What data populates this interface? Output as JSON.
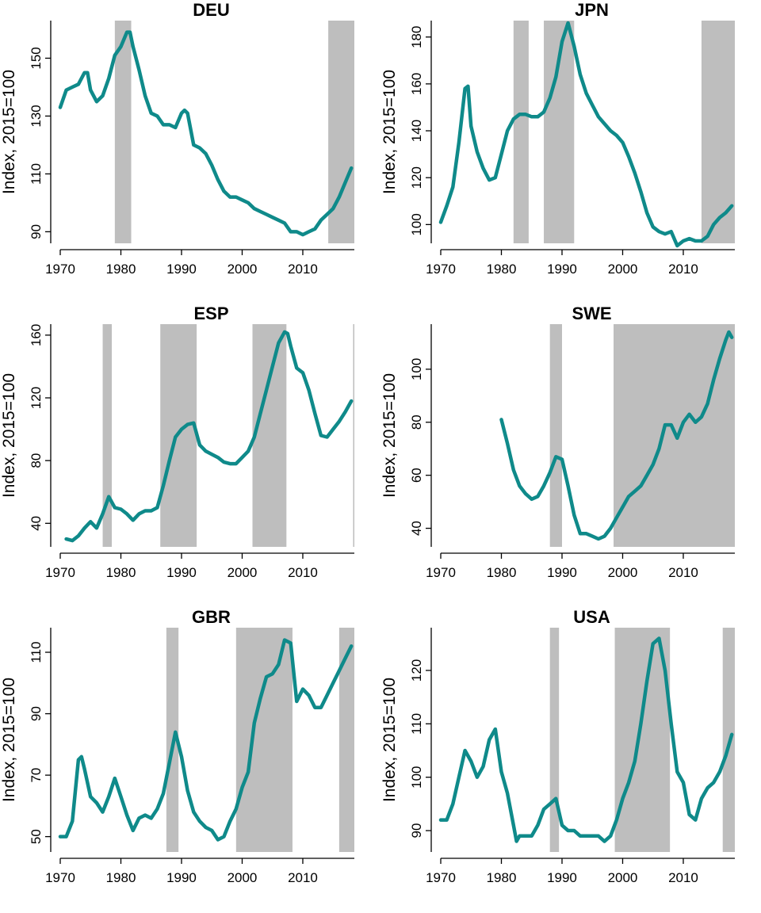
{
  "chart_data": [
    {
      "type": "line",
      "title": "DEU",
      "ylabel": "Index, 2015=100",
      "xlim": [
        1970,
        2018.5
      ],
      "ylim": [
        86,
        163
      ],
      "x_ticks": [
        1970,
        1980,
        1990,
        2000,
        2010
      ],
      "y_ticks": [
        90,
        110,
        130,
        150
      ],
      "shaded_periods": [
        [
          1979.0,
          1981.7
        ],
        [
          2014.2,
          2018.5
        ]
      ],
      "series": [
        {
          "color": "#0f8a8a",
          "x": [
            1970,
            1971,
            1972,
            1973,
            1974,
            1974.5,
            1975,
            1976,
            1977,
            1978,
            1979,
            1980,
            1981,
            1981.5,
            1982,
            1983,
            1984,
            1985,
            1986,
            1987,
            1988,
            1989,
            1990,
            1990.5,
            1991,
            1992,
            1993,
            1994,
            1995,
            1996,
            1997,
            1998,
            1999,
            2000,
            2001,
            2002,
            2003,
            2004,
            2005,
            2006,
            2007,
            2008,
            2009,
            2010,
            2011,
            2012,
            2013,
            2014,
            2015,
            2016,
            2017,
            2018
          ],
          "values": [
            133,
            139,
            140,
            141,
            145,
            145,
            139,
            135,
            137,
            143,
            151,
            154,
            159,
            159,
            154,
            146,
            137,
            131,
            130,
            127,
            127,
            126,
            131,
            132,
            131,
            120,
            119,
            117,
            113,
            108,
            104,
            102,
            102,
            101,
            100,
            98,
            97,
            96,
            95,
            94,
            93,
            90,
            90,
            89,
            90,
            91,
            94,
            96,
            98,
            102,
            107,
            112
          ]
        }
      ]
    },
    {
      "type": "line",
      "title": "JPN",
      "ylabel": "Index, 2015=100",
      "xlim": [
        1970,
        2018.5
      ],
      "ylim": [
        92,
        187
      ],
      "x_ticks": [
        1970,
        1980,
        1990,
        2000,
        2010
      ],
      "y_ticks": [
        100,
        120,
        140,
        160,
        180
      ],
      "shaded_periods": [
        [
          1982.0,
          1984.5
        ],
        [
          1987.0,
          1992.0
        ],
        [
          2013.0,
          2018.5
        ]
      ],
      "series": [
        {
          "color": "#0f8a8a",
          "x": [
            1970,
            1971,
            1972,
            1973,
            1974,
            1974.5,
            1975,
            1976,
            1977,
            1978,
            1979,
            1980,
            1981,
            1982,
            1983,
            1984,
            1985,
            1986,
            1987,
            1988,
            1989,
            1990,
            1991,
            1992,
            1993,
            1994,
            1995,
            1996,
            1997,
            1998,
            1999,
            2000,
            2001,
            2002,
            2003,
            2004,
            2005,
            2006,
            2007,
            2008,
            2009,
            2010,
            2011,
            2012,
            2013,
            2014,
            2015,
            2016,
            2017,
            2018
          ],
          "values": [
            101,
            108,
            116,
            135,
            158,
            159,
            142,
            131,
            124,
            119,
            120,
            130,
            140,
            145,
            147,
            147,
            146,
            146,
            148,
            154,
            163,
            178,
            186,
            176,
            164,
            156,
            151,
            146,
            143,
            140,
            138,
            135,
            129,
            122,
            114,
            105,
            99,
            97,
            96,
            97,
            91,
            93,
            94,
            93,
            93,
            95,
            100,
            103,
            105,
            108
          ]
        }
      ]
    },
    {
      "type": "line",
      "title": "ESP",
      "ylabel": "Index, 2015=100",
      "xlim": [
        1970,
        2018.5
      ],
      "ylim": [
        25,
        167
      ],
      "x_ticks": [
        1970,
        1980,
        1990,
        2000,
        2010
      ],
      "y_ticks": [
        40,
        80,
        120,
        160
      ],
      "shaded_periods": [
        [
          1977.0,
          1978.5
        ],
        [
          1986.5,
          1992.5
        ],
        [
          2001.7,
          2007.3
        ],
        [
          2018.3,
          2018.5
        ]
      ],
      "series": [
        {
          "color": "#0f8a8a",
          "x": [
            1971,
            1972,
            1973,
            1974,
            1975,
            1976,
            1977,
            1978,
            1979,
            1980,
            1981,
            1982,
            1983,
            1984,
            1985,
            1986,
            1987,
            1988,
            1989,
            1990,
            1991,
            1992,
            1993,
            1994,
            1995,
            1996,
            1997,
            1998,
            1999,
            2000,
            2001,
            2002,
            2003,
            2004,
            2005,
            2006,
            2007,
            2007.5,
            2008,
            2009,
            2010,
            2011,
            2012,
            2013,
            2014,
            2015,
            2016,
            2017,
            2018
          ],
          "values": [
            30,
            29,
            32,
            37,
            41,
            37,
            46,
            57,
            50,
            49,
            46,
            42,
            46,
            48,
            48,
            50,
            64,
            80,
            95,
            100,
            103,
            104,
            90,
            86,
            84,
            82,
            79,
            78,
            78,
            82,
            86,
            95,
            110,
            125,
            140,
            155,
            162,
            161,
            153,
            139,
            136,
            125,
            110,
            96,
            95,
            100,
            105,
            111,
            118
          ]
        }
      ]
    },
    {
      "type": "line",
      "title": "SWE",
      "ylabel": "Index, 2015=100",
      "xlim": [
        1970,
        2018.5
      ],
      "ylim": [
        33,
        117
      ],
      "x_ticks": [
        1970,
        1980,
        1990,
        2000,
        2010
      ],
      "y_ticks": [
        40,
        60,
        80,
        100
      ],
      "shaded_periods": [
        [
          1988.0,
          1990.0
        ],
        [
          1998.5,
          2018.5
        ]
      ],
      "series": [
        {
          "color": "#0f8a8a",
          "x": [
            1980,
            1981,
            1982,
            1983,
            1984,
            1985,
            1986,
            1987,
            1988,
            1989,
            1990,
            1991,
            1992,
            1993,
            1994,
            1995,
            1996,
            1997,
            1998,
            1999,
            2000,
            2001,
            2002,
            2003,
            2004,
            2005,
            2006,
            2007,
            2008,
            2009,
            2010,
            2011,
            2012,
            2013,
            2014,
            2015,
            2016,
            2017,
            2017.5,
            2018
          ],
          "values": [
            81,
            72,
            62,
            56,
            53,
            51,
            52,
            56,
            61,
            67,
            66,
            56,
            45,
            38,
            38,
            37,
            36,
            37,
            40,
            44,
            48,
            52,
            54,
            56,
            60,
            64,
            70,
            79,
            79,
            74,
            80,
            83,
            80,
            82,
            87,
            96,
            104,
            111,
            114,
            112
          ]
        }
      ]
    },
    {
      "type": "line",
      "title": "GBR",
      "ylabel": "Index, 2015=100",
      "xlim": [
        1970,
        2018.5
      ],
      "ylim": [
        45,
        118
      ],
      "x_ticks": [
        1970,
        1980,
        1990,
        2000,
        2010
      ],
      "y_ticks": [
        50,
        70,
        90,
        110
      ],
      "shaded_periods": [
        [
          1987.5,
          1989.5
        ],
        [
          1999.0,
          2008.3
        ],
        [
          2016.0,
          2018.5
        ]
      ],
      "series": [
        {
          "color": "#0f8a8a",
          "x": [
            1970,
            1971,
            1972,
            1973,
            1973.5,
            1974,
            1975,
            1976,
            1977,
            1978,
            1979,
            1980,
            1981,
            1982,
            1983,
            1984,
            1985,
            1986,
            1987,
            1988,
            1989,
            1990,
            1991,
            1992,
            1993,
            1994,
            1995,
            1996,
            1997,
            1998,
            1999,
            2000,
            2001,
            2002,
            2003,
            2004,
            2005,
            2006,
            2007,
            2008,
            2009,
            2010,
            2011,
            2012,
            2013,
            2014,
            2015,
            2016,
            2017,
            2018
          ],
          "values": [
            50,
            50,
            55,
            75,
            76,
            72,
            63,
            61,
            58,
            63,
            69,
            63,
            57,
            52,
            56,
            57,
            56,
            59,
            64,
            74,
            84,
            76,
            65,
            58,
            55,
            53,
            52,
            49,
            50,
            55,
            59,
            66,
            71,
            87,
            95,
            102,
            103,
            106,
            114,
            113,
            94,
            98,
            96,
            92,
            92,
            96,
            100,
            104,
            108,
            112
          ]
        }
      ]
    },
    {
      "type": "line",
      "title": "USA",
      "ylabel": "Index, 2015=100",
      "xlim": [
        1970,
        2018.5
      ],
      "ylim": [
        86,
        128
      ],
      "x_ticks": [
        1970,
        1980,
        1990,
        2000,
        2010
      ],
      "y_ticks": [
        90,
        100,
        110,
        120
      ],
      "shaded_periods": [
        [
          1988.0,
          1989.5
        ],
        [
          1998.7,
          2007.8
        ],
        [
          2016.5,
          2018.5
        ]
      ],
      "series": [
        {
          "color": "#0f8a8a",
          "x": [
            1970,
            1971,
            1972,
            1973,
            1974,
            1975,
            1976,
            1977,
            1978,
            1979,
            1980,
            1981,
            1982,
            1982.5,
            1983,
            1984,
            1985,
            1986,
            1987,
            1988,
            1989,
            1990,
            1991,
            1992,
            1993,
            1994,
            1995,
            1996,
            1997,
            1998,
            1999,
            2000,
            2001,
            2002,
            2003,
            2004,
            2005,
            2006,
            2007,
            2008,
            2009,
            2010,
            2011,
            2012,
            2013,
            2014,
            2015,
            2016,
            2017,
            2018
          ],
          "values": [
            92,
            92,
            95,
            100,
            105,
            103,
            100,
            102,
            107,
            109,
            101,
            97,
            91,
            88,
            89,
            89,
            89,
            91,
            94,
            95,
            96,
            91,
            90,
            90,
            89,
            89,
            89,
            89,
            88,
            89,
            92,
            96,
            99,
            103,
            110,
            118,
            125,
            126,
            120,
            110,
            101,
            99,
            93,
            92,
            96,
            98,
            99,
            101,
            104,
            108
          ]
        }
      ]
    }
  ]
}
